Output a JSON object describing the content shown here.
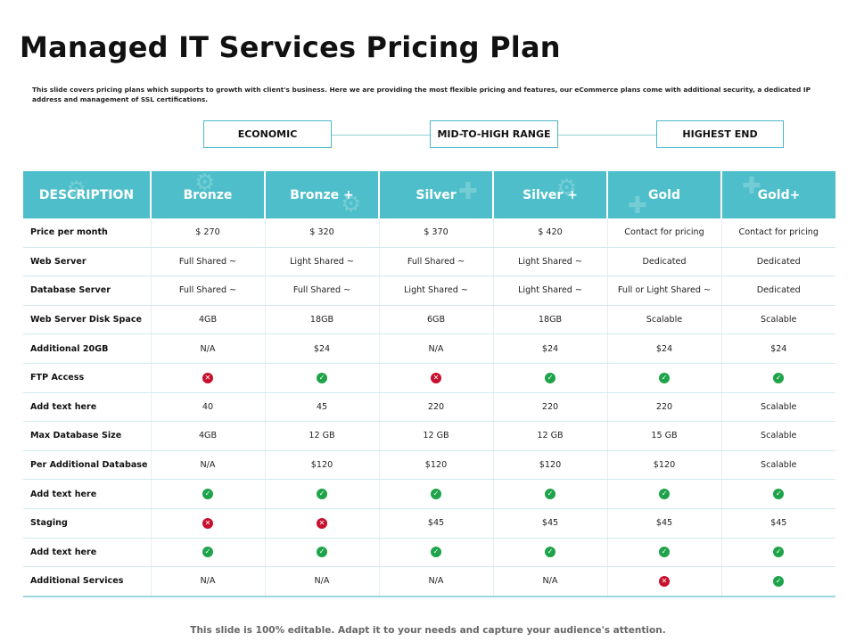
{
  "title": "Managed IT Services Pricing Plan",
  "subtitle": "This slide covers pricing plans which supports to growth with client's business. Here we are providing the most flexible pricing and features, our eCommerce plans come with additional security, a dedicated IP address and management of SSL certifications.",
  "tiers": [
    "ECONOMIC",
    "MID-TO-HIGH RANGE",
    "HIGHEST END"
  ],
  "colors": {
    "header_bg": "#4ebfca",
    "check": "#1fa34a",
    "cross": "#c8102e"
  },
  "table": {
    "headers": [
      "DESCRIPTION",
      "Bronze",
      "Bronze +",
      "Silver",
      "Silver +",
      "Gold",
      "Gold+"
    ],
    "rows": [
      [
        "Price per month",
        "$ 270",
        "$ 320",
        "$ 370",
        "$ 420",
        "Contact for pricing",
        "Contact for pricing"
      ],
      [
        "Web Server",
        "Full Shared ~",
        "Light Shared ~",
        "Full Shared ~",
        "Light Shared ~",
        "Dedicated",
        "Dedicated"
      ],
      [
        "Database Server",
        "Full Shared ~",
        "Full Shared ~",
        "Light Shared ~",
        "Light Shared ~",
        "Full or Light Shared ~",
        "Dedicated"
      ],
      [
        "Web Server Disk Space",
        "4GB",
        "18GB",
        "6GB",
        "18GB",
        "Scalable",
        "Scalable"
      ],
      [
        "Additional 20GB",
        "N/A",
        "$24",
        "N/A",
        "$24",
        "$24",
        "$24"
      ],
      [
        "FTP Access",
        "cross",
        "check",
        "cross",
        "check",
        "check",
        "check"
      ],
      [
        "Add text here",
        "40",
        "45",
        "220",
        "220",
        "220",
        "Scalable"
      ],
      [
        "Max Database Size",
        "4GB",
        "12 GB",
        "12 GB",
        "12 GB",
        "15 GB",
        "Scalable"
      ],
      [
        "Per Additional Database",
        "N/A",
        "$120",
        "$120",
        "$120",
        "$120",
        "Scalable"
      ],
      [
        "Add text here",
        "check",
        "check",
        "check",
        "check",
        "check",
        "check"
      ],
      [
        "Staging",
        "cross",
        "cross",
        "$45",
        "$45",
        "$45",
        "$45"
      ],
      [
        "Add text here",
        "check",
        "check",
        "check",
        "check",
        "check",
        "check"
      ],
      [
        "Additional Services",
        "N/A",
        "N/A",
        "N/A",
        "N/A",
        "cross",
        "check"
      ]
    ]
  },
  "footer": "This slide is 100% editable. Adapt it to your needs and capture your audience's attention."
}
